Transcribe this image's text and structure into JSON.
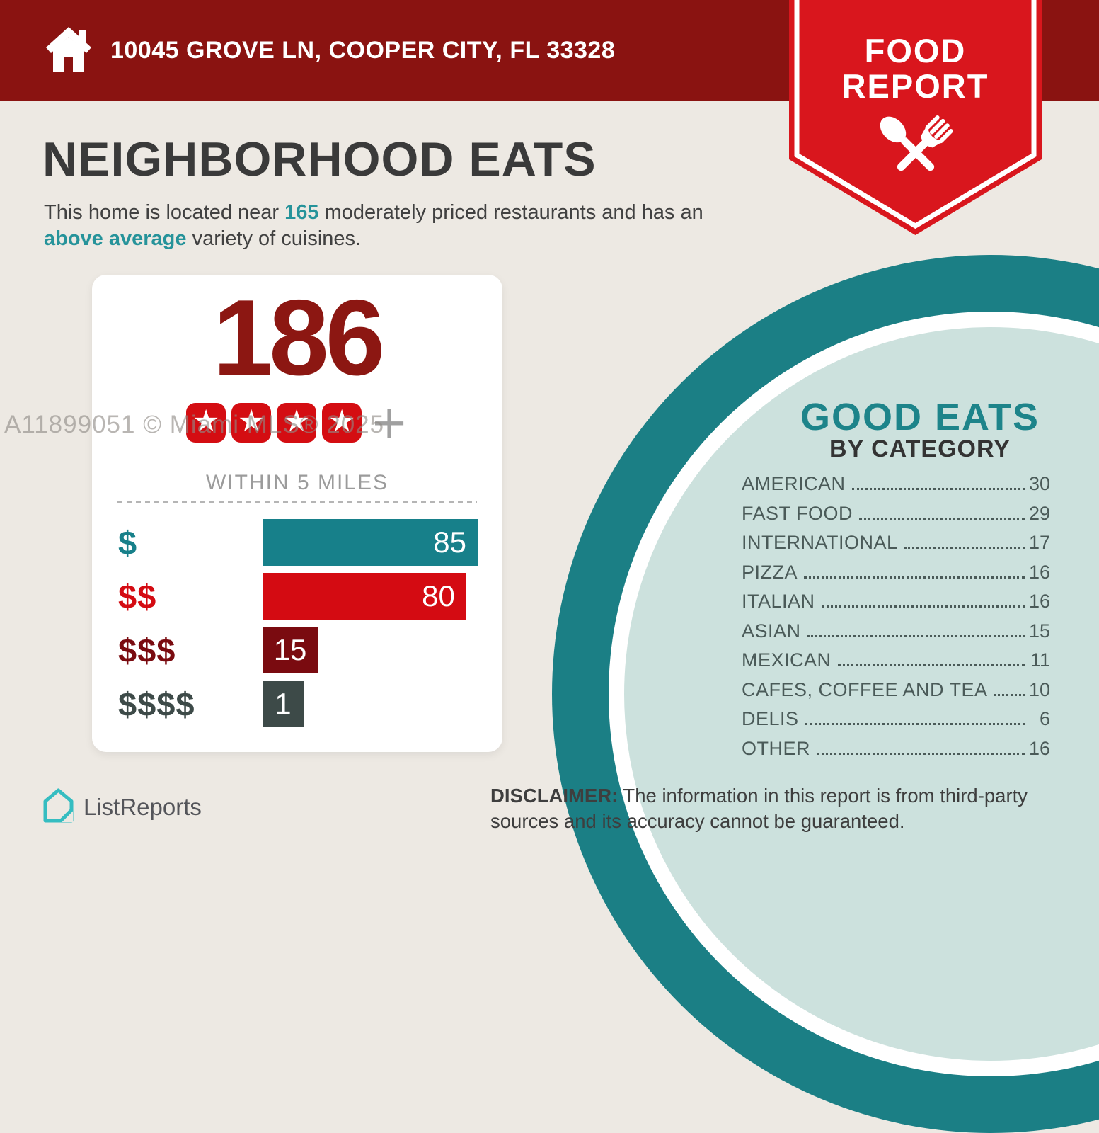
{
  "header": {
    "address": "10045 GROVE LN, COOPER CITY, FL 33328",
    "bar_color": "#8A1311"
  },
  "badge": {
    "line1": "FOOD",
    "line2": "REPORT",
    "color": "#D9161D"
  },
  "main": {
    "title": "NEIGHBORHOOD EATS",
    "intro": {
      "text_1": "This home is located near ",
      "count": "165",
      "text_2": " moderately priced restaurants and has an ",
      "highlight": "above average",
      "text_3": " variety of cuisines.",
      "accent_color": "#26939A"
    }
  },
  "stats_card": {
    "total": "186",
    "star_count": 4,
    "star_glyph": "★",
    "star_color": "#D40D12",
    "plus_label": "+",
    "radius_label": "WITHIN 5 MILES"
  },
  "chart_data": [
    {
      "type": "bar",
      "title": "186",
      "subtitle": "WITHIN 5 MILES",
      "categories": [
        "$",
        "$$",
        "$$$",
        "$$$$"
      ],
      "values": [
        85,
        80,
        15,
        1
      ],
      "colors": [
        "#17808A",
        "#D40B12",
        "#7A0B10",
        "#3D4A48"
      ],
      "bar_width_pct": [
        100,
        94.7,
        25.7,
        19
      ],
      "xlim": [
        0,
        85
      ],
      "value_label_color": "#FFFFFF",
      "legend": "none",
      "grid": false
    },
    {
      "type": "table",
      "title": "GOOD EATS",
      "subtitle": "BY CATEGORY",
      "rows": [
        [
          "AMERICAN",
          30
        ],
        [
          "FAST FOOD",
          29
        ],
        [
          "INTERNATIONAL",
          17
        ],
        [
          "PIZZA",
          16
        ],
        [
          "ITALIAN",
          16
        ],
        [
          "ASIAN",
          15
        ],
        [
          "MEXICAN",
          11
        ],
        [
          "CAFES, COFFEE AND TEA",
          10
        ],
        [
          "DELIS",
          6
        ],
        [
          "OTHER",
          16
        ]
      ],
      "text_color": "#4A5A58",
      "accent_color": "#1D848A"
    }
  ],
  "footer": {
    "logo_text": "ListReports",
    "logo_color": "#35BDC1",
    "disclaimer_label": "DISCLAIMER:",
    "disclaimer_text": " The information in this report is from third-party sources and its accuracy cannot be guaranteed."
  },
  "watermark": "A11899051 © Miami MLS® 2025"
}
